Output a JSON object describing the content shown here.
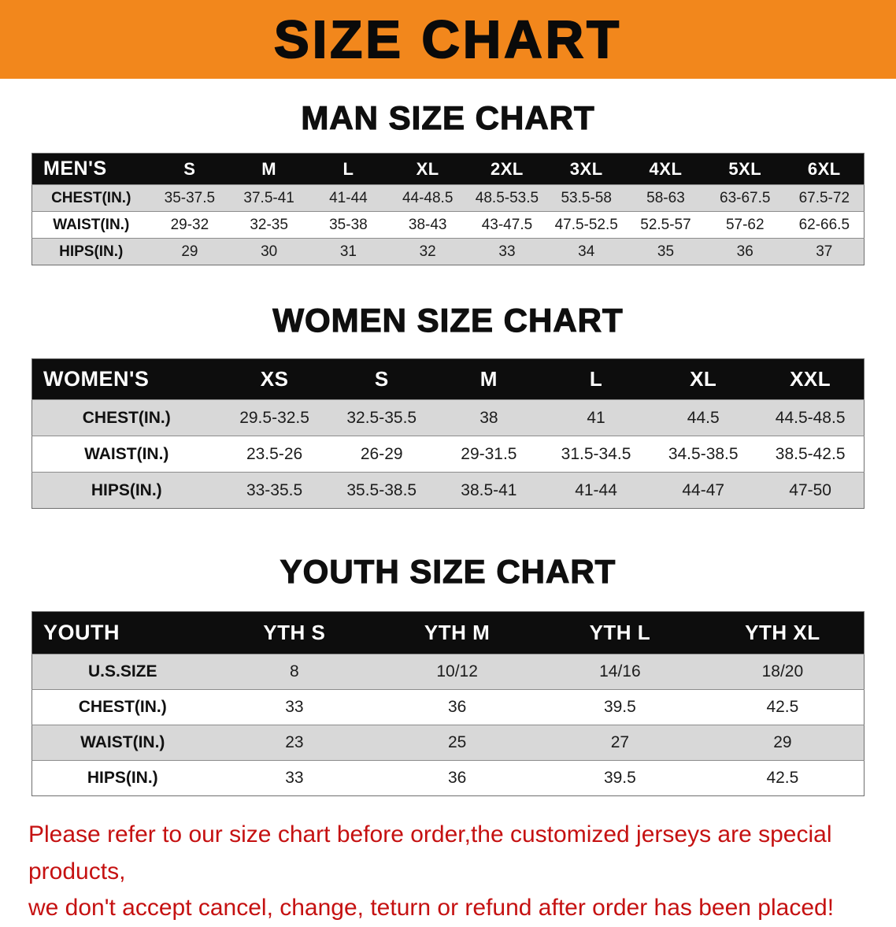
{
  "banner": {
    "title": "SIZE CHART"
  },
  "colors": {
    "banner": "#F2871C",
    "heading": "#0F0F0F",
    "table_header_bg": "#0D0D0D",
    "table_header_text": "#FFFFFF",
    "row_alt": "#D8D8D8",
    "disclaimer": "#C51111"
  },
  "chart_data": [
    {
      "type": "table",
      "title": "MAN SIZE CHART",
      "header": [
        "MEN'S",
        "S",
        "M",
        "L",
        "XL",
        "2XL",
        "3XL",
        "4XL",
        "5XL",
        "6XL"
      ],
      "rows": [
        [
          "CHEST(IN.)",
          "35-37.5",
          "37.5-41",
          "41-44",
          "44-48.5",
          "48.5-53.5",
          "53.5-58",
          "58-63",
          "63-67.5",
          "67.5-72"
        ],
        [
          "WAIST(IN.)",
          "29-32",
          "32-35",
          "35-38",
          "38-43",
          "43-47.5",
          "47.5-52.5",
          "52.5-57",
          "57-62",
          "62-66.5"
        ],
        [
          "HIPS(IN.)",
          "29",
          "30",
          "31",
          "32",
          "33",
          "34",
          "35",
          "36",
          "37"
        ]
      ]
    },
    {
      "type": "table",
      "title": "WOMEN SIZE CHART",
      "header": [
        "WOMEN'S",
        "XS",
        "S",
        "M",
        "L",
        "XL",
        "XXL"
      ],
      "rows": [
        [
          "CHEST(IN.)",
          "29.5-32.5",
          "32.5-35.5",
          "38",
          "41",
          "44.5",
          "44.5-48.5"
        ],
        [
          "WAIST(IN.)",
          "23.5-26",
          "26-29",
          "29-31.5",
          "31.5-34.5",
          "34.5-38.5",
          "38.5-42.5"
        ],
        [
          "HIPS(IN.)",
          "33-35.5",
          "35.5-38.5",
          "38.5-41",
          "41-44",
          "44-47",
          "47-50"
        ]
      ]
    },
    {
      "type": "table",
      "title": "YOUTH SIZE CHART",
      "header": [
        "YOUTH",
        "YTH S",
        "YTH M",
        "YTH L",
        "YTH XL"
      ],
      "rows": [
        [
          "U.S.SIZE",
          "8",
          "10/12",
          "14/16",
          "18/20"
        ],
        [
          "CHEST(IN.)",
          "33",
          "36",
          "39.5",
          "42.5"
        ],
        [
          "WAIST(IN.)",
          "23",
          "25",
          "27",
          "29"
        ],
        [
          "HIPS(IN.)",
          "33",
          "36",
          "39.5",
          "42.5"
        ]
      ]
    }
  ],
  "footer": {
    "line1": "Please refer to our size chart before order,the customized jerseys are special products,",
    "line2": "we don't accept cancel, change, teturn or refund after order has been placed!"
  }
}
